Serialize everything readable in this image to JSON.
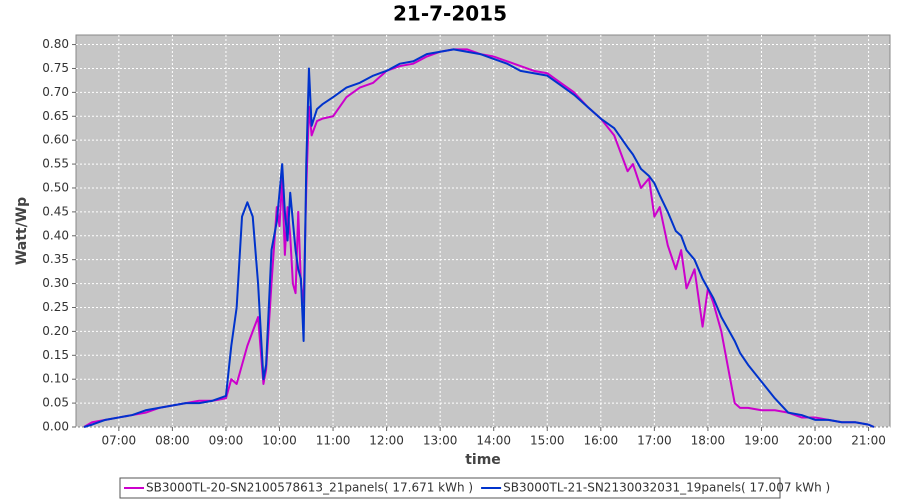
{
  "chart_data": {
    "type": "line",
    "title": "21-7-2015",
    "x_label": "time",
    "y_label": "Watt/Wp",
    "x": [
      6.35,
      6.5,
      6.75,
      7.0,
      7.25,
      7.5,
      7.75,
      8.0,
      8.25,
      8.5,
      8.75,
      9.0,
      9.1,
      9.2,
      9.3,
      9.4,
      9.5,
      9.6,
      9.7,
      9.75,
      9.85,
      9.95,
      10.0,
      10.05,
      10.1,
      10.15,
      10.2,
      10.25,
      10.3,
      10.35,
      10.4,
      10.45,
      10.5,
      10.55,
      10.6,
      10.7,
      10.8,
      11.0,
      11.25,
      11.5,
      11.75,
      12.0,
      12.25,
      12.5,
      12.75,
      13.0,
      13.25,
      13.5,
      13.75,
      14.0,
      14.25,
      14.5,
      14.75,
      15.0,
      15.25,
      15.5,
      15.75,
      16.0,
      16.25,
      16.5,
      16.6,
      16.75,
      16.9,
      17.0,
      17.1,
      17.25,
      17.4,
      17.5,
      17.6,
      17.75,
      17.9,
      18.0,
      18.1,
      18.25,
      18.4,
      18.5,
      18.6,
      18.75,
      19.0,
      19.25,
      19.5,
      19.75,
      20.0,
      20.25,
      20.5,
      20.75,
      21.0,
      21.1
    ],
    "series": [
      {
        "name": "SB3000TL-20-SN2100578613_21panels( 17.671 kWh )",
        "color": "#cc00cc",
        "values": [
          0,
          0.01,
          0.015,
          0.02,
          0.025,
          0.03,
          0.04,
          0.045,
          0.05,
          0.055,
          0.055,
          0.06,
          0.1,
          0.09,
          0.13,
          0.17,
          0.2,
          0.23,
          0.09,
          0.12,
          0.3,
          0.46,
          0.42,
          0.52,
          0.36,
          0.46,
          0.4,
          0.3,
          0.28,
          0.45,
          0.3,
          0.26,
          0.5,
          0.67,
          0.61,
          0.64,
          0.645,
          0.65,
          0.69,
          0.71,
          0.72,
          0.745,
          0.755,
          0.76,
          0.775,
          0.785,
          0.79,
          0.79,
          0.78,
          0.775,
          0.765,
          0.755,
          0.745,
          0.74,
          0.72,
          0.7,
          0.67,
          0.645,
          0.61,
          0.535,
          0.55,
          0.5,
          0.52,
          0.44,
          0.46,
          0.38,
          0.33,
          0.37,
          0.29,
          0.33,
          0.21,
          0.29,
          0.26,
          0.2,
          0.11,
          0.05,
          0.04,
          0.04,
          0.035,
          0.035,
          0.03,
          0.02,
          0.02,
          0.015,
          0.01,
          0.01,
          0.005,
          0
        ]
      },
      {
        "name": "SB3000TL-21-SN2130032031_19panels( 17.007 kWh )",
        "color": "#0033cc",
        "values": [
          0,
          0.005,
          0.015,
          0.02,
          0.025,
          0.035,
          0.04,
          0.045,
          0.05,
          0.05,
          0.055,
          0.065,
          0.17,
          0.25,
          0.44,
          0.47,
          0.44,
          0.3,
          0.1,
          0.13,
          0.37,
          0.43,
          0.49,
          0.55,
          0.45,
          0.39,
          0.49,
          0.43,
          0.37,
          0.33,
          0.31,
          0.18,
          0.55,
          0.75,
          0.63,
          0.665,
          0.675,
          0.69,
          0.71,
          0.72,
          0.735,
          0.745,
          0.76,
          0.765,
          0.78,
          0.785,
          0.79,
          0.785,
          0.78,
          0.77,
          0.76,
          0.745,
          0.74,
          0.735,
          0.715,
          0.695,
          0.67,
          0.645,
          0.625,
          0.585,
          0.57,
          0.54,
          0.525,
          0.51,
          0.485,
          0.45,
          0.41,
          0.4,
          0.37,
          0.35,
          0.31,
          0.29,
          0.27,
          0.23,
          0.2,
          0.18,
          0.155,
          0.13,
          0.095,
          0.06,
          0.03,
          0.025,
          0.015,
          0.015,
          0.01,
          0.01,
          0.005,
          0
        ]
      }
    ],
    "xlim": [
      6.2,
      21.4
    ],
    "xticks": [
      {
        "value": 7,
        "label": "07:00"
      },
      {
        "value": 8,
        "label": "08:00"
      },
      {
        "value": 9,
        "label": "09:00"
      },
      {
        "value": 10,
        "label": "10:00"
      },
      {
        "value": 11,
        "label": "11:00"
      },
      {
        "value": 12,
        "label": "12:00"
      },
      {
        "value": 13,
        "label": "13:00"
      },
      {
        "value": 14,
        "label": "14:00"
      },
      {
        "value": 15,
        "label": "15:00"
      },
      {
        "value": 16,
        "label": "16:00"
      },
      {
        "value": 17,
        "label": "17:00"
      },
      {
        "value": 18,
        "label": "18:00"
      },
      {
        "value": 19,
        "label": "19:00"
      },
      {
        "value": 20,
        "label": "20:00"
      },
      {
        "value": 21,
        "label": "21:00"
      }
    ],
    "ylim": [
      0,
      0.82
    ],
    "yticks": [
      {
        "value": 0,
        "label": "0.00"
      },
      {
        "value": 0.05,
        "label": "0.05"
      },
      {
        "value": 0.1,
        "label": "0.10"
      },
      {
        "value": 0.15,
        "label": "0.15"
      },
      {
        "value": 0.2,
        "label": "0.20"
      },
      {
        "value": 0.25,
        "label": "0.25"
      },
      {
        "value": 0.3,
        "label": "0.30"
      },
      {
        "value": 0.35,
        "label": "0.35"
      },
      {
        "value": 0.4,
        "label": "0.40"
      },
      {
        "value": 0.45,
        "label": "0.45"
      },
      {
        "value": 0.5,
        "label": "0.50"
      },
      {
        "value": 0.55,
        "label": "0.55"
      },
      {
        "value": 0.6,
        "label": "0.60"
      },
      {
        "value": 0.65,
        "label": "0.65"
      },
      {
        "value": 0.7,
        "label": "0.70"
      },
      {
        "value": 0.75,
        "label": "0.75"
      },
      {
        "value": 0.8,
        "label": "0.80"
      }
    ],
    "grid": true,
    "legend": "bottom",
    "plot_background": "#c6c6c6"
  }
}
